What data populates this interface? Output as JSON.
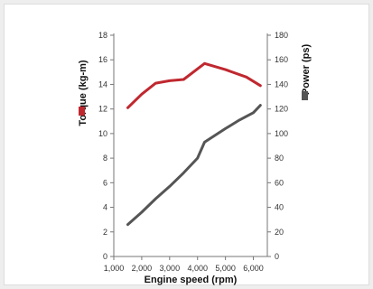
{
  "chart_data": {
    "type": "line",
    "xlabel": "Engine speed (rpm)",
    "x_ticks": [
      "1,000",
      "2,000",
      "3,000",
      "4,000",
      "5,000",
      "6,000"
    ],
    "xlim": [
      1000,
      6500
    ],
    "left_axis": {
      "label": "Torque (kg-m)",
      "ylim": [
        0,
        18
      ],
      "ticks": [
        "0",
        "2",
        "4",
        "6",
        "8",
        "10",
        "12",
        "14",
        "16",
        "18"
      ]
    },
    "right_axis": {
      "label": "Power (ps)",
      "ylim": [
        0,
        180
      ],
      "ticks": [
        "0",
        "20",
        "40",
        "60",
        "80",
        "100",
        "120",
        "140",
        "160",
        "180"
      ]
    },
    "grid": false,
    "series": [
      {
        "axis": "left",
        "color": "#c0282f",
        "points": [
          {
            "x": 1500,
            "y": 12.1
          },
          {
            "x": 2000,
            "y": 13.2
          },
          {
            "x": 2500,
            "y": 14.1
          },
          {
            "x": 3000,
            "y": 14.3
          },
          {
            "x": 3500,
            "y": 14.4
          },
          {
            "x": 4250,
            "y": 15.7
          },
          {
            "x": 5000,
            "y": 15.2
          },
          {
            "x": 5750,
            "y": 14.6
          },
          {
            "x": 6250,
            "y": 13.9
          }
        ]
      },
      {
        "axis": "right",
        "color": "#555555",
        "points": [
          {
            "x": 1500,
            "y": 26
          },
          {
            "x": 2000,
            "y": 36
          },
          {
            "x": 2500,
            "y": 47
          },
          {
            "x": 3000,
            "y": 57
          },
          {
            "x": 3500,
            "y": 68
          },
          {
            "x": 4000,
            "y": 80
          },
          {
            "x": 4250,
            "y": 93
          },
          {
            "x": 5000,
            "y": 104
          },
          {
            "x": 5500,
            "y": 111
          },
          {
            "x": 6000,
            "y": 117
          },
          {
            "x": 6250,
            "y": 123
          }
        ]
      }
    ]
  }
}
